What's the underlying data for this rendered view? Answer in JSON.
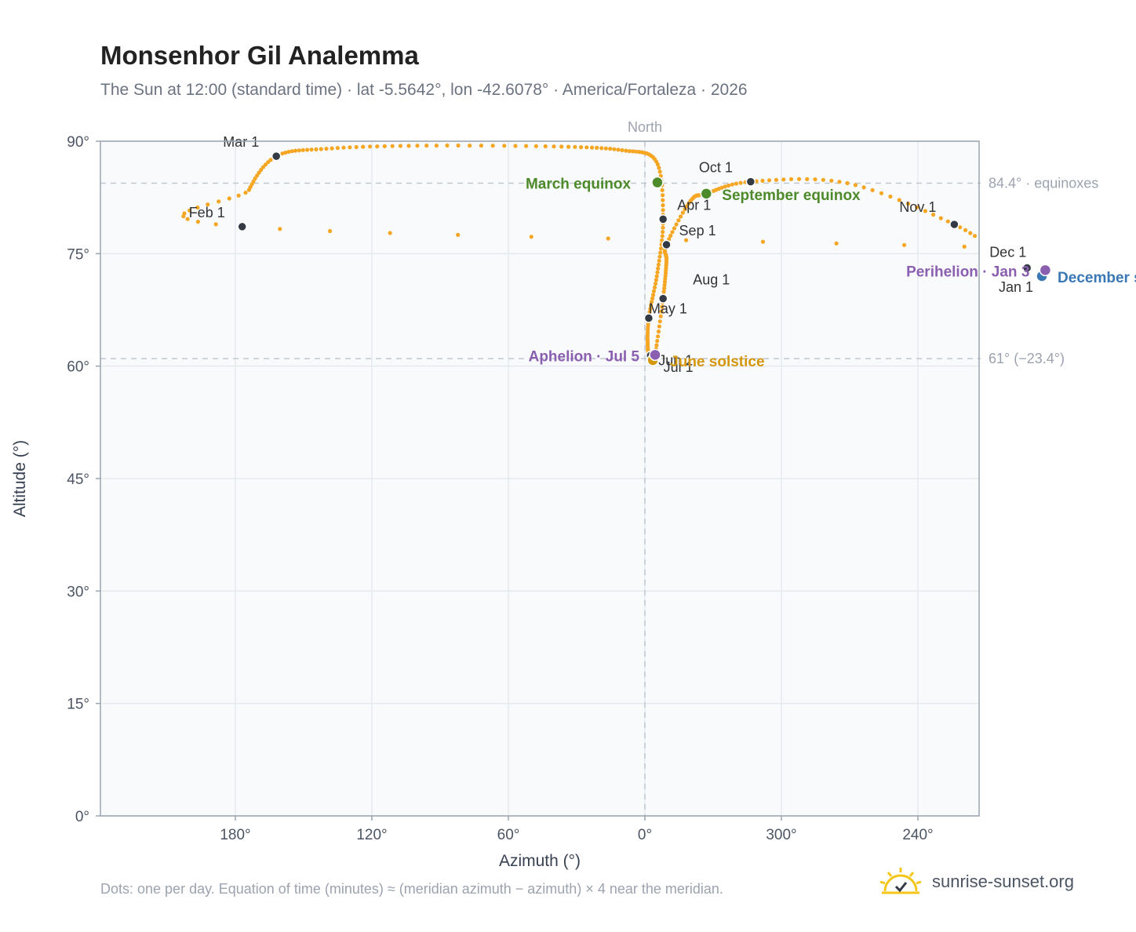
{
  "title": "Monsenhor Gil Analemma",
  "subtitle": "The Sun at 12:00 (standard time) · lat -5.5642°, lon -42.6078° · America/Fortaleza · 2026",
  "footnote": "Dots: one per day. Equation of time (minutes) ≈ (meridian azimuth − azimuth) × 4 near the meridian.",
  "brand": {
    "name": "sunrise-sunset.org",
    "icon": "sun-check-icon"
  },
  "colors": {
    "curve": "#f5a623",
    "month_marker": "#333a44",
    "equinox": "#4d8a2a",
    "december_solstice": "#3a78b5",
    "june_solstice": "#d4960c",
    "perihelion_aphelion": "#8b5fb0",
    "plot_bg": "#f8fafc",
    "grid": "#e5e9ee",
    "reference_line": "#bfc8d0"
  },
  "chart_data": {
    "type": "scatter",
    "title": "Monsenhor Gil Analemma",
    "xlabel": "Azimuth (°)",
    "ylabel": "Altitude (°)",
    "x_axis": {
      "reversed": true,
      "ticks": [
        180,
        240,
        300,
        0,
        60,
        120
      ],
      "tick_labels": [
        "180°",
        "240°",
        "300°",
        "0°",
        "60°",
        "120°"
      ]
    },
    "y_axis": {
      "min": 0,
      "max": 90,
      "ticks": [
        0,
        15,
        30,
        45,
        60,
        75,
        90
      ],
      "tick_labels": [
        "0°",
        "15°",
        "30°",
        "45°",
        "60°",
        "75°",
        "90°"
      ]
    },
    "grid": true,
    "meridian": {
      "azimuth": 0,
      "label": "North"
    },
    "reference_lines": [
      {
        "altitude": 84.4,
        "label": "84.4° · equinoxes"
      },
      {
        "altitude": 61,
        "label": "61° (−23.4°)"
      }
    ],
    "path_points": [
      {
        "date": "Jan 1",
        "az": 184.5,
        "alt": 72.4
      },
      {
        "date": "Jan 3",
        "az": 184.0,
        "alt": 72.8
      },
      {
        "date": "Jan 16",
        "az": 181.0,
        "alt": 75.5
      },
      {
        "date": "Feb 1",
        "az": 177.0,
        "alt": 78.6
      },
      {
        "date": "Feb 15",
        "az": 174.0,
        "alt": 83.5
      },
      {
        "date": "Mar 1",
        "az": 162.0,
        "alt": 88.0
      },
      {
        "date": "Mar 8",
        "az": 140.0,
        "alt": 89.0
      },
      {
        "date": "Mar 14",
        "az": 100.0,
        "alt": 89.4
      },
      {
        "date": "Mar 17",
        "az": 40.0,
        "alt": 89.3
      },
      {
        "date": "Mar 19",
        "az": 10.0,
        "alt": 88.8
      },
      {
        "date": "Mar 24",
        "az": 355.0,
        "alt": 87.3
      },
      {
        "date": "Apr 1",
        "az": 352.0,
        "alt": 79.6
      },
      {
        "date": "Apr 15",
        "az": 354.5,
        "alt": 72.5
      },
      {
        "date": "May 1",
        "az": 358.3,
        "alt": 66.4
      },
      {
        "date": "May 20",
        "az": 358.7,
        "alt": 62.3
      },
      {
        "date": "Jun 1",
        "az": 357.5,
        "alt": 61.4
      },
      {
        "date": "Jun 21",
        "az": 356.5,
        "alt": 60.8
      },
      {
        "date": "Jul 1",
        "az": 356.0,
        "alt": 61.3
      },
      {
        "date": "Jul 5",
        "az": 355.5,
        "alt": 61.5
      },
      {
        "date": "Aug 1",
        "az": 352.0,
        "alt": 69.0
      },
      {
        "date": "Aug 15",
        "az": 350.5,
        "alt": 74.0
      },
      {
        "date": "Sep 1",
        "az": 350.5,
        "alt": 76.2
      },
      {
        "date": "Sep 15",
        "az": 340.0,
        "alt": 82.0
      },
      {
        "date": "Sep 23",
        "az": 333.0,
        "alt": 83.0
      },
      {
        "date": "Oct 1",
        "az": 313.5,
        "alt": 84.6
      },
      {
        "date": "Oct 16",
        "az": 271.0,
        "alt": 84.4
      },
      {
        "date": "Nov 1",
        "az": 224.0,
        "alt": 78.9
      },
      {
        "date": "Nov 16",
        "az": 202.0,
        "alt": 74.5
      },
      {
        "date": "Dec 1",
        "az": 192.0,
        "alt": 73.1
      },
      {
        "date": "Dec 21",
        "az": 185.5,
        "alt": 72.0
      },
      {
        "date": "Dec 31",
        "az": 184.5,
        "alt": 72.4
      }
    ],
    "month_markers": [
      {
        "label": "Jan 1",
        "az": 184.5,
        "alt": 72.4
      },
      {
        "label": "Feb 1",
        "az": 177.0,
        "alt": 78.6
      },
      {
        "label": "Mar 1",
        "az": 162.0,
        "alt": 88.0
      },
      {
        "label": "Apr 1",
        "az": 352.0,
        "alt": 79.6
      },
      {
        "label": "May 1",
        "az": 358.3,
        "alt": 66.4
      },
      {
        "label": "Jun 1",
        "az": 357.5,
        "alt": 61.4
      },
      {
        "label": "Jul 1",
        "az": 356.0,
        "alt": 61.3
      },
      {
        "label": "Aug 1",
        "az": 352.0,
        "alt": 69.0
      },
      {
        "label": "Sep 1",
        "az": 350.5,
        "alt": 76.2
      },
      {
        "label": "Oct 1",
        "az": 313.5,
        "alt": 84.6
      },
      {
        "label": "Nov 1",
        "az": 224.0,
        "alt": 78.9
      },
      {
        "label": "Dec 1",
        "az": 192.0,
        "alt": 73.1
      }
    ],
    "events": [
      {
        "label": "March equinox",
        "az": 354.5,
        "alt": 84.5,
        "kind": "equinox"
      },
      {
        "label": "September equinox",
        "az": 333.0,
        "alt": 83.0,
        "kind": "equinox"
      },
      {
        "label": "June solstice",
        "az": 356.5,
        "alt": 60.8,
        "kind": "june_solstice"
      },
      {
        "label": "December solstice",
        "az": 185.5,
        "alt": 72.0,
        "kind": "december_solstice"
      },
      {
        "label": "Perihelion · Jan 3",
        "az": 184.0,
        "alt": 72.8,
        "kind": "perihelion_aphelion"
      },
      {
        "label": "Aphelion · Jul 5",
        "az": 355.5,
        "alt": 61.5,
        "kind": "perihelion_aphelion"
      }
    ]
  }
}
